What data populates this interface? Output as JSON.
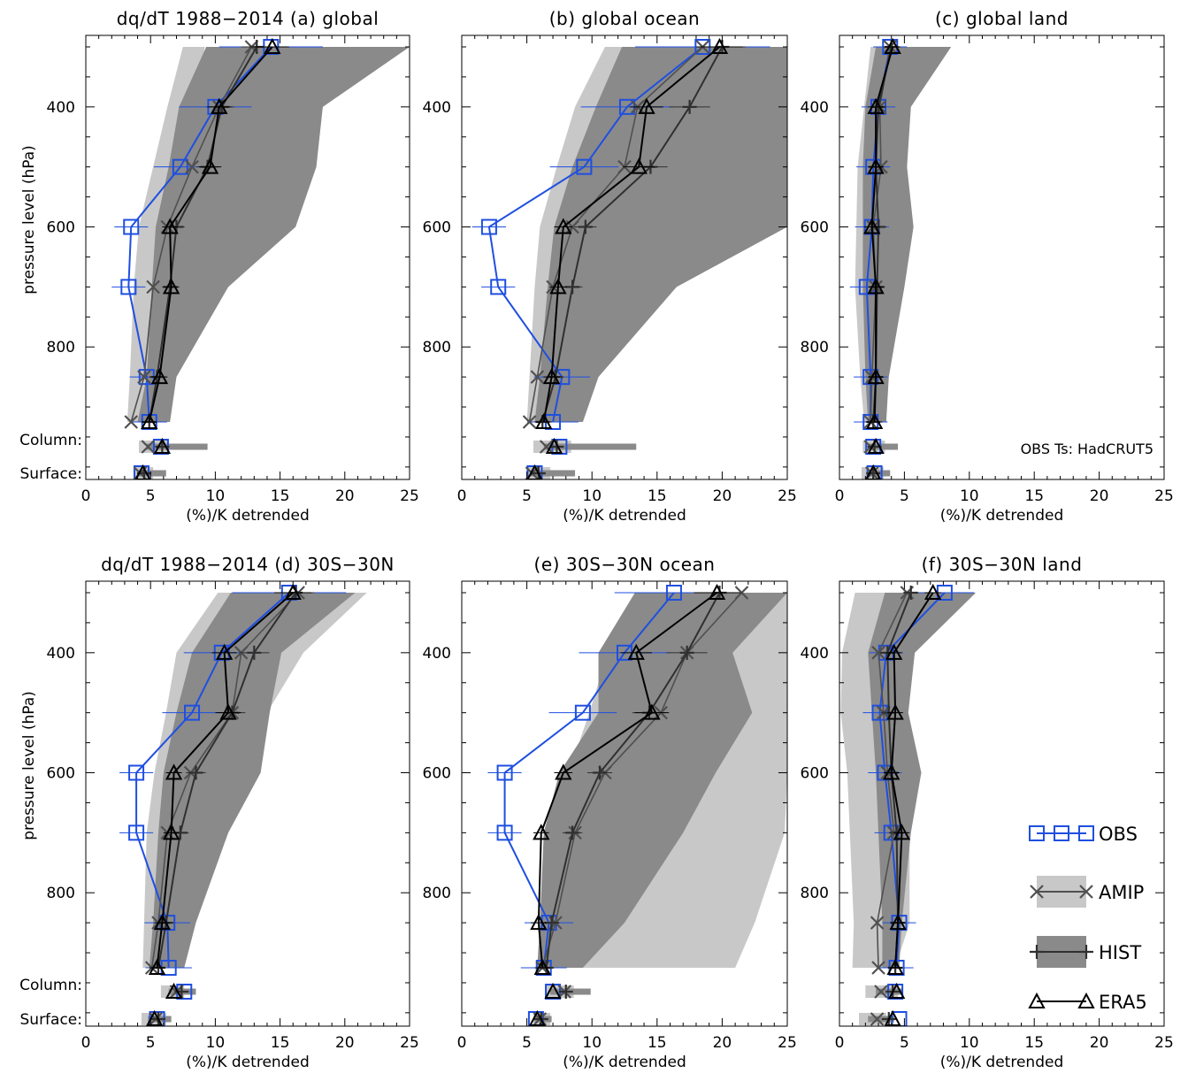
{
  "colors": {
    "obs": "#1f4fe0",
    "amip": "#505050",
    "hist": "#303030",
    "era5": "#000000",
    "amip_range": "#c8c8c8",
    "hist_range": "#8a8a8a",
    "axis": "#000000"
  },
  "common": {
    "xlabel": "(%)/K detrended",
    "ylabel": "pressure level (hPa)",
    "xticks": [
      0,
      5,
      10,
      15,
      20,
      25
    ],
    "yticks": [
      400,
      600,
      800
    ],
    "column_label": "Column:",
    "surface_label": "Surface:"
  },
  "annotation": "OBS Ts: HadCRUT5",
  "legend": {
    "obs": "OBS",
    "amip": "AMIP",
    "hist": "HIST",
    "era5": "ERA5"
  },
  "chart_data": [
    {
      "type": "line",
      "title": "dq/dT 1988−2014 (a) global",
      "xlim": [
        0,
        25
      ],
      "levels": [
        300,
        400,
        500,
        600,
        700,
        850,
        925
      ],
      "series": [
        {
          "name": "OBS",
          "values": [
            14.3,
            10.0,
            7.3,
            3.5,
            3.3,
            4.7,
            4.9
          ],
          "column": 5.8,
          "surface": 4.3
        },
        {
          "name": "AMIP",
          "values": [
            12.8,
            10.3,
            8.2,
            6.3,
            5.2,
            4.5,
            3.5
          ],
          "column": 4.8,
          "surface": 4.2
        },
        {
          "name": "HIST",
          "values": [
            13.2,
            10.5,
            9.4,
            7.0,
            6.5,
            5.5,
            4.9
          ],
          "column": 5.9,
          "surface": 4.5
        },
        {
          "name": "ERA5",
          "values": [
            14.4,
            10.3,
            9.6,
            6.5,
            6.6,
            5.7,
            4.9
          ],
          "column": 5.9,
          "surface": 4.4
        }
      ],
      "amip_range": {
        "lo": [
          7.5,
          6.3,
          5.2,
          4.1,
          3.7,
          3.4,
          3.2
        ],
        "hi": [
          9.2,
          8.3,
          7.6,
          6.2,
          6.2,
          6.1,
          6.0
        ]
      },
      "hist_range": {
        "lo": [
          9.3,
          7.2,
          6.4,
          5.4,
          5.1,
          4.7,
          4.0
        ],
        "hi": [
          25,
          18.3,
          17.8,
          16.2,
          11.0,
          7.0,
          6.5
        ]
      },
      "column_bars": {
        "amip": [
          4.1,
          6.3
        ],
        "hist": [
          4.7,
          9.4
        ]
      },
      "surface_bars": {
        "amip": [
          3.8,
          5.2
        ],
        "hist": [
          4.0,
          6.2
        ]
      }
    },
    {
      "type": "line",
      "title": "(b) global ocean",
      "xlim": [
        0,
        25
      ],
      "levels": [
        300,
        400,
        500,
        600,
        700,
        850,
        925
      ],
      "series": [
        {
          "name": "OBS",
          "values": [
            18.5,
            12.7,
            9.4,
            2.1,
            2.8,
            7.7,
            7.0
          ],
          "column": 7.5,
          "surface": 5.6
        },
        {
          "name": "AMIP",
          "values": [
            18.5,
            13.5,
            12.5,
            8.5,
            7.0,
            5.8,
            5.2
          ],
          "column": 6.5,
          "surface": 5.4
        },
        {
          "name": "HIST",
          "values": [
            20.0,
            17.5,
            14.5,
            9.5,
            8.5,
            7.2,
            6.2
          ],
          "column": 7.3,
          "surface": 5.9
        },
        {
          "name": "ERA5",
          "values": [
            19.8,
            14.2,
            13.6,
            7.8,
            7.4,
            6.9,
            6.3
          ],
          "column": 7.1,
          "surface": 5.6
        }
      ],
      "amip_range": {
        "lo": [
          11.0,
          8.7,
          7.3,
          6.0,
          5.6,
          5.2,
          5.0
        ],
        "hi": [
          13.0,
          10.5,
          9.5,
          8.0,
          8.0,
          8.4,
          9.0
        ]
      },
      "hist_range": {
        "lo": [
          12.3,
          10.3,
          8.5,
          7.1,
          6.6,
          6.0,
          5.6
        ],
        "hi": [
          25,
          25,
          25,
          25,
          16.5,
          10.5,
          9.3
        ]
      },
      "column_bars": {
        "amip": [
          5.5,
          8.4
        ],
        "hist": [
          6.3,
          13.4
        ]
      },
      "surface_bars": {
        "amip": [
          5.0,
          6.8
        ],
        "hist": [
          5.3,
          8.7
        ]
      }
    },
    {
      "type": "line",
      "title": "(c) global land",
      "xlim": [
        0,
        25
      ],
      "levels": [
        300,
        400,
        500,
        600,
        700,
        850,
        925
      ],
      "series": [
        {
          "name": "OBS",
          "values": [
            3.9,
            3.0,
            2.6,
            2.5,
            2.1,
            2.4,
            2.4
          ],
          "column": 2.6,
          "surface": 2.7
        },
        {
          "name": "AMIP",
          "values": [
            3.9,
            3.1,
            3.2,
            2.6,
            2.8,
            2.5,
            2.4
          ],
          "column": 2.4,
          "surface": 2.5
        },
        {
          "name": "HIST",
          "values": [
            4.0,
            3.0,
            2.8,
            3.0,
            2.9,
            2.8,
            2.6
          ],
          "column": 2.7,
          "surface": 2.6
        },
        {
          "name": "ERA5",
          "values": [
            4.1,
            2.8,
            2.8,
            2.5,
            2.8,
            2.8,
            2.7
          ],
          "column": 2.8,
          "surface": 2.6
        }
      ],
      "amip_range": {
        "lo": [
          2.4,
          1.9,
          1.4,
          1.3,
          1.2,
          1.6,
          1.9
        ],
        "hi": [
          5.6,
          5.2,
          5.2,
          5.0,
          4.2,
          3.6,
          3.3
        ]
      },
      "hist_range": {
        "lo": [
          2.8,
          2.0,
          1.8,
          1.8,
          1.8,
          2.0,
          2.2
        ],
        "hi": [
          8.6,
          5.5,
          5.2,
          5.7,
          5.0,
          3.8,
          3.6
        ]
      },
      "column_bars": {
        "amip": [
          1.8,
          3.5
        ],
        "hist": [
          2.2,
          4.5
        ]
      },
      "surface_bars": {
        "amip": [
          1.7,
          3.4
        ],
        "hist": [
          2.2,
          3.9
        ]
      }
    },
    {
      "type": "line",
      "title": "dq/dT 1988−2014 (d) 30S−30N",
      "xlim": [
        0,
        25
      ],
      "levels": [
        300,
        400,
        500,
        600,
        700,
        850,
        925
      ],
      "series": [
        {
          "name": "OBS",
          "values": [
            15.7,
            10.5,
            8.2,
            3.9,
            3.9,
            6.3,
            6.4
          ],
          "column": 7.6,
          "surface": 5.5
        },
        {
          "name": "AMIP",
          "values": [
            16.4,
            12.0,
            11.3,
            8.1,
            6.3,
            5.6,
            5.1
          ],
          "column": 7.0,
          "surface": 5.4
        },
        {
          "name": "HIST",
          "values": [
            16.2,
            13.0,
            11.3,
            8.5,
            7.3,
            6.2,
            5.6
          ],
          "column": 7.4,
          "surface": 5.6
        },
        {
          "name": "ERA5",
          "values": [
            16.0,
            10.7,
            11.0,
            6.8,
            6.6,
            5.9,
            5.5
          ],
          "column": 6.8,
          "surface": 5.3
        }
      ],
      "amip_range": {
        "lo": [
          10.2,
          7.0,
          6.2,
          5.3,
          4.7,
          4.5,
          4.4
        ],
        "hi": [
          21.7,
          16.8,
          14.0,
          11.5,
          10.0,
          7.5,
          6.5
        ]
      },
      "hist_range": {
        "lo": [
          11.2,
          8.2,
          7.0,
          6.0,
          5.6,
          5.2,
          4.9
        ],
        "hi": [
          20.8,
          15.1,
          14.2,
          13.5,
          11.0,
          8.5,
          7.6
        ]
      },
      "column_bars": {
        "amip": [
          5.8,
          7.6
        ],
        "hist": [
          6.4,
          8.5
        ]
      },
      "surface_bars": {
        "amip": [
          4.3,
          6.2
        ],
        "hist": [
          4.8,
          6.6
        ]
      }
    },
    {
      "type": "line",
      "title": "(e) 30S−30N ocean",
      "xlim": [
        0,
        25
      ],
      "levels": [
        300,
        400,
        500,
        600,
        700,
        850,
        925
      ],
      "series": [
        {
          "name": "OBS",
          "values": [
            16.3,
            12.5,
            9.3,
            3.3,
            3.3,
            6.7,
            6.3
          ],
          "column": 7.0,
          "surface": 5.7
        },
        {
          "name": "AMIP",
          "values": [
            21.5,
            17.3,
            15.3,
            11.0,
            8.7,
            7.2,
            6.2
          ],
          "column": 7.9,
          "surface": 6.0
        },
        {
          "name": "HIST",
          "values": [
            19.8,
            17.3,
            14.4,
            10.6,
            8.5,
            6.9,
            6.5
          ],
          "column": 8.0,
          "surface": 6.1
        },
        {
          "name": "ERA5",
          "values": [
            19.6,
            13.4,
            14.6,
            7.8,
            6.1,
            5.9,
            6.2
          ],
          "column": 7.0,
          "surface": 5.8
        }
      ],
      "amip_range": {
        "lo": [
          14.2,
          11.2,
          9.8,
          8.2,
          7.0,
          6.2,
          6.0
        ],
        "hi": [
          25,
          25,
          25,
          25,
          24.8,
          22.5,
          21.0
        ]
      },
      "hist_range": {
        "lo": [
          13.3,
          10.5,
          10.5,
          7.5,
          6.3,
          6.0,
          5.8
        ],
        "hi": [
          25,
          20.8,
          22.3,
          19.5,
          17.0,
          12.5,
          9.3
        ]
      },
      "column_bars": {
        "amip": [
          6.5,
          8.6
        ],
        "hist": [
          6.8,
          9.9
        ]
      },
      "surface_bars": {
        "amip": [
          5.5,
          6.8
        ],
        "hist": [
          5.6,
          6.9
        ]
      }
    },
    {
      "type": "line",
      "title": "(f) 30S−30N land",
      "xlim": [
        0,
        25
      ],
      "levels": [
        300,
        400,
        500,
        600,
        700,
        850,
        925
      ],
      "series": [
        {
          "name": "OBS",
          "values": [
            8.1,
            3.6,
            3.1,
            3.5,
            4.0,
            4.6,
            4.4
          ],
          "column": 4.3,
          "surface": 4.6
        },
        {
          "name": "AMIP",
          "values": [
            5.2,
            3.0,
            3.4,
            3.7,
            4.2,
            2.9,
            3.0
          ],
          "column": 3.2,
          "surface": 2.9
        },
        {
          "name": "HIST",
          "values": [
            5.5,
            3.7,
            3.8,
            4.0,
            4.4,
            4.5,
            4.3
          ],
          "column": 4.1,
          "surface": 3.8
        },
        {
          "name": "ERA5",
          "values": [
            7.2,
            4.2,
            4.3,
            4.0,
            4.8,
            4.5,
            4.3
          ],
          "column": 4.4,
          "surface": 4.1
        }
      ],
      "amip_range": {
        "lo": [
          1.2,
          0.2,
          0.1,
          0.6,
          0.8,
          1.1,
          1.0
        ],
        "hi": [
          6.0,
          5.3,
          5.0,
          5.2,
          5.4,
          5.4,
          4.3
        ]
      },
      "hist_range": {
        "lo": [
          3.5,
          2.2,
          2.5,
          2.8,
          3.0,
          3.3,
          3.3
        ],
        "hi": [
          10.5,
          5.8,
          5.3,
          6.3,
          5.5,
          4.8,
          4.6
        ]
      },
      "column_bars": {
        "amip": [
          2.0,
          4.5
        ],
        "hist": [
          2.8,
          4.8
        ]
      },
      "surface_bars": {
        "amip": [
          1.5,
          3.6
        ],
        "hist": [
          2.2,
          4.2
        ]
      }
    }
  ]
}
